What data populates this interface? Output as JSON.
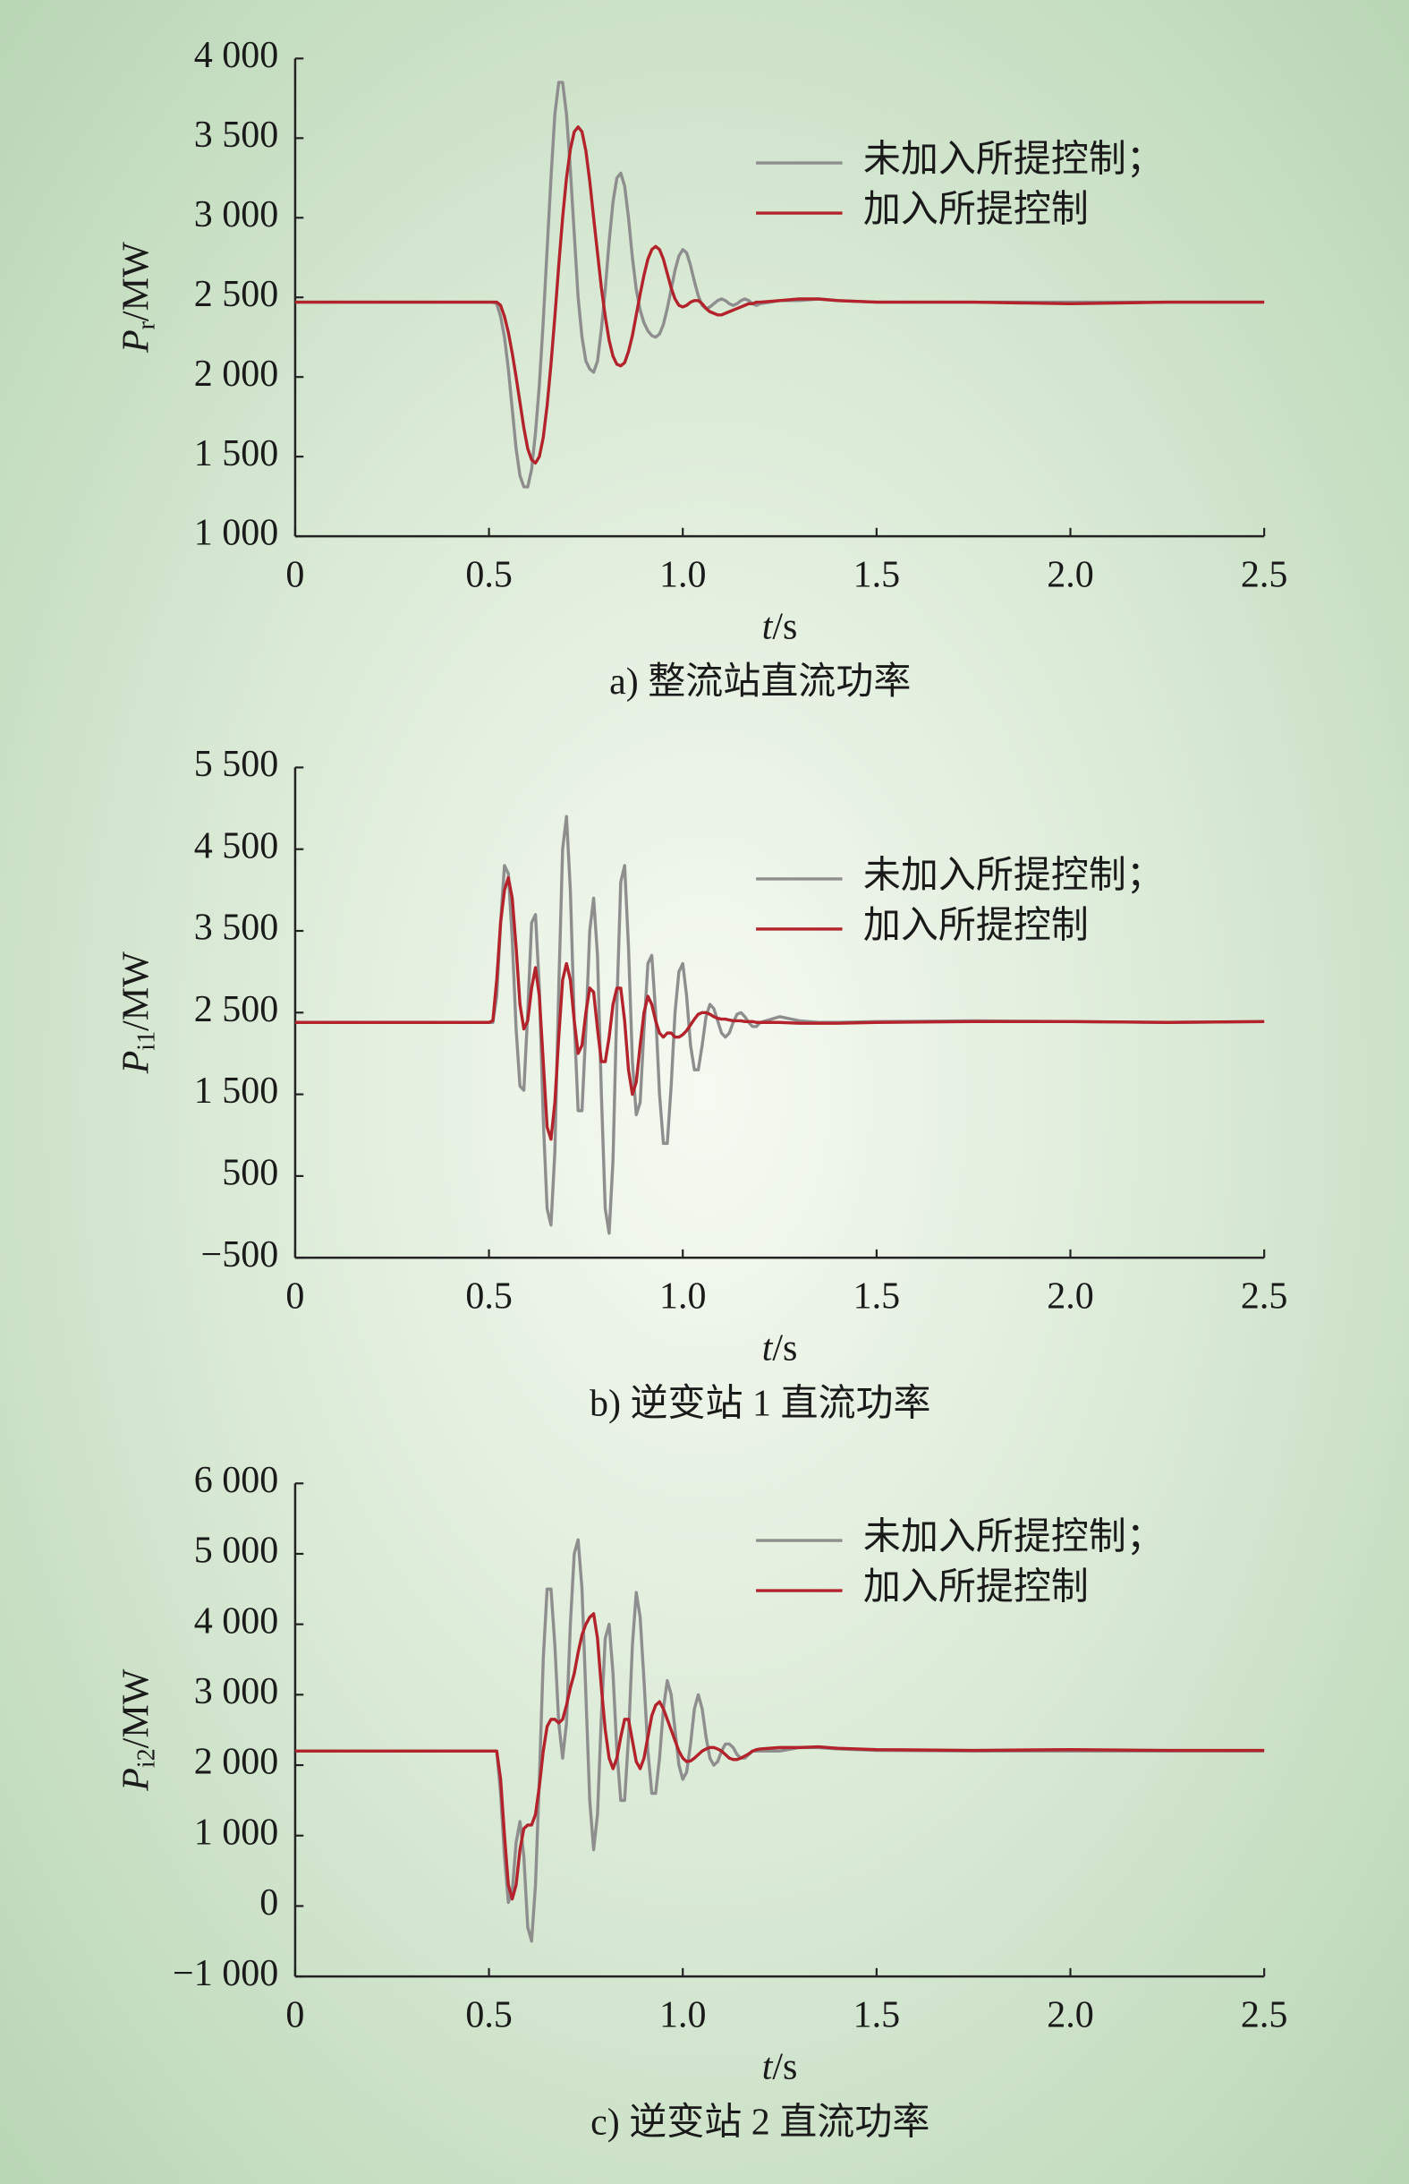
{
  "chart_data": [
    {
      "type": "line",
      "title": "a) 整流站直流功率",
      "xlabel": [
        "t",
        "/s"
      ],
      "ylabel": [
        "P",
        "r",
        "/MW"
      ],
      "legend": "upper right",
      "grid": false,
      "xlim": [
        0,
        2.5
      ],
      "xticks": [
        0,
        0.5,
        {
          "value": 1,
          "label": "1.0"
        },
        1.5,
        {
          "value": 2,
          "label": "2.0"
        },
        2.5
      ],
      "ylim": [
        1000,
        4000
      ],
      "yticks": [
        {
          "value": 1000,
          "label": "1 000"
        },
        {
          "value": 1500,
          "label": "1 500"
        },
        {
          "value": 2000,
          "label": "2 000"
        },
        {
          "value": 2500,
          "label": "2 500"
        },
        {
          "value": 3000,
          "label": "3 000"
        },
        {
          "value": 3500,
          "label": "3 500"
        },
        {
          "value": 4000,
          "label": "4 000"
        }
      ],
      "x": [
        0,
        0.25,
        0.5,
        0.51,
        0.52,
        0.53,
        0.54,
        0.55,
        0.56,
        0.57,
        0.58,
        0.59,
        0.6,
        0.61,
        0.62,
        0.63,
        0.64,
        0.65,
        0.66,
        0.67,
        0.68,
        0.69,
        0.7,
        0.71,
        0.72,
        0.73,
        0.74,
        0.75,
        0.76,
        0.77,
        0.78,
        0.79,
        0.8,
        0.81,
        0.82,
        0.83,
        0.84,
        0.85,
        0.86,
        0.87,
        0.88,
        0.89,
        0.9,
        0.91,
        0.92,
        0.93,
        0.94,
        0.95,
        0.96,
        0.97,
        0.98,
        0.99,
        1,
        1.01,
        1.02,
        1.03,
        1.04,
        1.05,
        1.06,
        1.07,
        1.08,
        1.09,
        1.1,
        1.11,
        1.12,
        1.13,
        1.14,
        1.15,
        1.16,
        1.17,
        1.18,
        1.19,
        1.2,
        1.25,
        1.3,
        1.35,
        1.4,
        1.5,
        1.75,
        2,
        2.25,
        2.5
      ],
      "series": [
        {
          "name": "未加入所提控制；",
          "color": "#8e8e8e",
          "values": [
            2470,
            2470,
            2470,
            2470,
            2460,
            2380,
            2250,
            2050,
            1800,
            1550,
            1380,
            1310,
            1310,
            1420,
            1650,
            1950,
            2350,
            2800,
            3250,
            3650,
            3850,
            3850,
            3650,
            3300,
            2900,
            2500,
            2250,
            2100,
            2050,
            2030,
            2100,
            2300,
            2550,
            2850,
            3100,
            3250,
            3280,
            3200,
            3000,
            2750,
            2550,
            2420,
            2340,
            2290,
            2260,
            2250,
            2270,
            2330,
            2430,
            2550,
            2670,
            2760,
            2800,
            2780,
            2700,
            2600,
            2510,
            2450,
            2430,
            2440,
            2460,
            2480,
            2490,
            2480,
            2460,
            2450,
            2460,
            2480,
            2490,
            2480,
            2460,
            2450,
            2460,
            2480,
            2480,
            2490,
            2480,
            2470,
            2470,
            2470,
            2470,
            2470
          ]
        },
        {
          "name": "加入所提控制",
          "color": "#b3232b",
          "values": [
            2470,
            2470,
            2470,
            2470,
            2470,
            2450,
            2380,
            2280,
            2150,
            2000,
            1840,
            1680,
            1550,
            1480,
            1460,
            1500,
            1620,
            1820,
            2080,
            2380,
            2700,
            3000,
            3250,
            3430,
            3540,
            3570,
            3540,
            3420,
            3230,
            3000,
            2780,
            2560,
            2380,
            2230,
            2130,
            2080,
            2070,
            2090,
            2160,
            2260,
            2390,
            2520,
            2640,
            2740,
            2800,
            2820,
            2800,
            2740,
            2650,
            2560,
            2490,
            2450,
            2440,
            2450,
            2470,
            2480,
            2480,
            2460,
            2430,
            2410,
            2400,
            2390,
            2390,
            2400,
            2410,
            2420,
            2430,
            2440,
            2450,
            2460,
            2460,
            2470,
            2470,
            2480,
            2490,
            2490,
            2480,
            2470,
            2470,
            2460,
            2470,
            2470
          ]
        }
      ]
    },
    {
      "type": "line",
      "title": "b) 逆变站 1 直流功率",
      "xlabel": [
        "t",
        "/s"
      ],
      "ylabel": [
        "P",
        "i1",
        "/MW"
      ],
      "legend": "upper right",
      "grid": false,
      "xlim": [
        0,
        2.5
      ],
      "xticks": [
        0,
        0.5,
        {
          "value": 1,
          "label": "1.0"
        },
        1.5,
        {
          "value": 2,
          "label": "2.0"
        },
        2.5
      ],
      "ylim": [
        -500,
        5500
      ],
      "yticks": [
        {
          "value": -500,
          "label": "−500"
        },
        500,
        {
          "value": 1500,
          "label": "1 500"
        },
        {
          "value": 2500,
          "label": "2 500"
        },
        {
          "value": 3500,
          "label": "3 500"
        },
        {
          "value": 4500,
          "label": "4 500"
        },
        {
          "value": 5500,
          "label": "5 500"
        }
      ],
      "x": [
        0,
        0.25,
        0.5,
        0.51,
        0.52,
        0.53,
        0.54,
        0.55,
        0.56,
        0.57,
        0.58,
        0.59,
        0.6,
        0.61,
        0.62,
        0.63,
        0.64,
        0.65,
        0.66,
        0.67,
        0.68,
        0.69,
        0.7,
        0.71,
        0.72,
        0.73,
        0.74,
        0.75,
        0.76,
        0.77,
        0.78,
        0.79,
        0.8,
        0.81,
        0.82,
        0.83,
        0.84,
        0.85,
        0.86,
        0.87,
        0.88,
        0.89,
        0.9,
        0.91,
        0.92,
        0.93,
        0.94,
        0.95,
        0.96,
        0.97,
        0.98,
        0.99,
        1,
        1.01,
        1.02,
        1.03,
        1.04,
        1.05,
        1.06,
        1.07,
        1.08,
        1.09,
        1.1,
        1.11,
        1.12,
        1.13,
        1.14,
        1.15,
        1.16,
        1.17,
        1.18,
        1.19,
        1.2,
        1.25,
        1.3,
        1.35,
        1.4,
        1.5,
        1.75,
        2,
        2.25,
        2.5
      ],
      "series": [
        {
          "name": "未加入所提控制；",
          "color": "#8e8e8e",
          "values": [
            2380,
            2380,
            2380,
            2380,
            2700,
            3600,
            4300,
            4200,
            3400,
            2300,
            1600,
            1550,
            2500,
            3600,
            3700,
            2800,
            1200,
            100,
            -100,
            800,
            2800,
            4500,
            4900,
            4000,
            2400,
            1300,
            1300,
            2300,
            3500,
            3900,
            3200,
            1500,
            100,
            -200,
            700,
            2600,
            4100,
            4300,
            3300,
            1900,
            1250,
            1400,
            2300,
            3100,
            3200,
            2500,
            1500,
            900,
            900,
            1600,
            2500,
            3000,
            3100,
            2700,
            2100,
            1800,
            1800,
            2100,
            2450,
            2600,
            2550,
            2400,
            2250,
            2200,
            2250,
            2380,
            2480,
            2500,
            2450,
            2380,
            2330,
            2330,
            2380,
            2450,
            2400,
            2380,
            2380,
            2390,
            2400,
            2390,
            2380,
            2390
          ]
        },
        {
          "name": "加入所提控制",
          "color": "#b3232b",
          "values": [
            2380,
            2380,
            2380,
            2400,
            2900,
            3600,
            4000,
            4150,
            3900,
            3300,
            2600,
            2300,
            2400,
            2800,
            3050,
            2700,
            1900,
            1100,
            950,
            1400,
            2200,
            2900,
            3100,
            2900,
            2400,
            2000,
            2100,
            2500,
            2800,
            2750,
            2300,
            1900,
            1900,
            2200,
            2600,
            2800,
            2800,
            2400,
            1800,
            1500,
            1650,
            2100,
            2500,
            2700,
            2600,
            2400,
            2250,
            2200,
            2250,
            2250,
            2200,
            2200,
            2230,
            2280,
            2350,
            2420,
            2480,
            2500,
            2500,
            2480,
            2450,
            2430,
            2420,
            2420,
            2410,
            2400,
            2400,
            2400,
            2390,
            2390,
            2390,
            2380,
            2380,
            2380,
            2370,
            2370,
            2370,
            2380,
            2390,
            2390,
            2380,
            2390
          ]
        }
      ]
    },
    {
      "type": "line",
      "title": "c) 逆变站 2 直流功率",
      "xlabel": [
        "t",
        "/s"
      ],
      "ylabel": [
        "P",
        "i2",
        "/MW"
      ],
      "legend": "upper right",
      "grid": false,
      "xlim": [
        0,
        2.5
      ],
      "xticks": [
        0,
        0.5,
        {
          "value": 1,
          "label": "1.0"
        },
        1.5,
        {
          "value": 2,
          "label": "2.0"
        },
        2.5
      ],
      "ylim": [
        -1000,
        6000
      ],
      "yticks": [
        {
          "value": -1000,
          "label": "−1 000"
        },
        0,
        {
          "value": 1000,
          "label": "1 000"
        },
        {
          "value": 2000,
          "label": "2 000"
        },
        {
          "value": 3000,
          "label": "3 000"
        },
        {
          "value": 4000,
          "label": "4 000"
        },
        {
          "value": 5000,
          "label": "5 000"
        },
        {
          "value": 6000,
          "label": "6 000"
        }
      ],
      "x": [
        0,
        0.25,
        0.5,
        0.51,
        0.52,
        0.53,
        0.54,
        0.55,
        0.56,
        0.57,
        0.58,
        0.59,
        0.6,
        0.61,
        0.62,
        0.63,
        0.64,
        0.65,
        0.66,
        0.67,
        0.68,
        0.69,
        0.7,
        0.71,
        0.72,
        0.73,
        0.74,
        0.75,
        0.76,
        0.77,
        0.78,
        0.79,
        0.8,
        0.81,
        0.82,
        0.83,
        0.84,
        0.85,
        0.86,
        0.87,
        0.88,
        0.89,
        0.9,
        0.91,
        0.92,
        0.93,
        0.94,
        0.95,
        0.96,
        0.97,
        0.98,
        0.99,
        1,
        1.01,
        1.02,
        1.03,
        1.04,
        1.05,
        1.06,
        1.07,
        1.08,
        1.09,
        1.1,
        1.11,
        1.12,
        1.13,
        1.14,
        1.15,
        1.16,
        1.17,
        1.18,
        1.19,
        1.2,
        1.25,
        1.3,
        1.35,
        1.4,
        1.5,
        1.75,
        2,
        2.25,
        2.5
      ],
      "series": [
        {
          "name": "未加入所提控制；",
          "color": "#8e8e8e",
          "values": [
            2200,
            2200,
            2200,
            2200,
            2200,
            1600,
            700,
            50,
            200,
            900,
            1200,
            700,
            -300,
            -500,
            300,
            1800,
            3500,
            4500,
            4500,
            3700,
            2600,
            2100,
            2600,
            4000,
            5000,
            5200,
            4500,
            3000,
            1500,
            800,
            1300,
            2700,
            3800,
            4000,
            3300,
            2200,
            1500,
            1500,
            2400,
            3700,
            4450,
            4100,
            3200,
            2200,
            1600,
            1600,
            2100,
            2800,
            3200,
            3000,
            2500,
            2000,
            1800,
            1900,
            2300,
            2800,
            3000,
            2800,
            2400,
            2100,
            2000,
            2050,
            2200,
            2300,
            2300,
            2250,
            2150,
            2100,
            2100,
            2150,
            2200,
            2200,
            2200,
            2200,
            2250,
            2250,
            2230,
            2210,
            2200,
            2200,
            2200,
            2200
          ]
        },
        {
          "name": "加入所提控制",
          "color": "#b3232b",
          "values": [
            2200,
            2200,
            2200,
            2200,
            2200,
            1800,
            1000,
            300,
            100,
            300,
            800,
            1100,
            1150,
            1150,
            1300,
            1700,
            2200,
            2550,
            2650,
            2650,
            2600,
            2650,
            2850,
            3100,
            3300,
            3600,
            3850,
            4000,
            4100,
            4150,
            3800,
            3100,
            2500,
            2100,
            1950,
            2100,
            2400,
            2650,
            2650,
            2350,
            2050,
            1950,
            2100,
            2400,
            2700,
            2850,
            2900,
            2800,
            2650,
            2500,
            2350,
            2200,
            2100,
            2050,
            2060,
            2100,
            2150,
            2200,
            2230,
            2250,
            2250,
            2230,
            2200,
            2150,
            2100,
            2080,
            2080,
            2100,
            2130,
            2160,
            2200,
            2220,
            2230,
            2250,
            2250,
            2260,
            2240,
            2220,
            2210,
            2220,
            2210,
            2210
          ]
        }
      ]
    }
  ]
}
